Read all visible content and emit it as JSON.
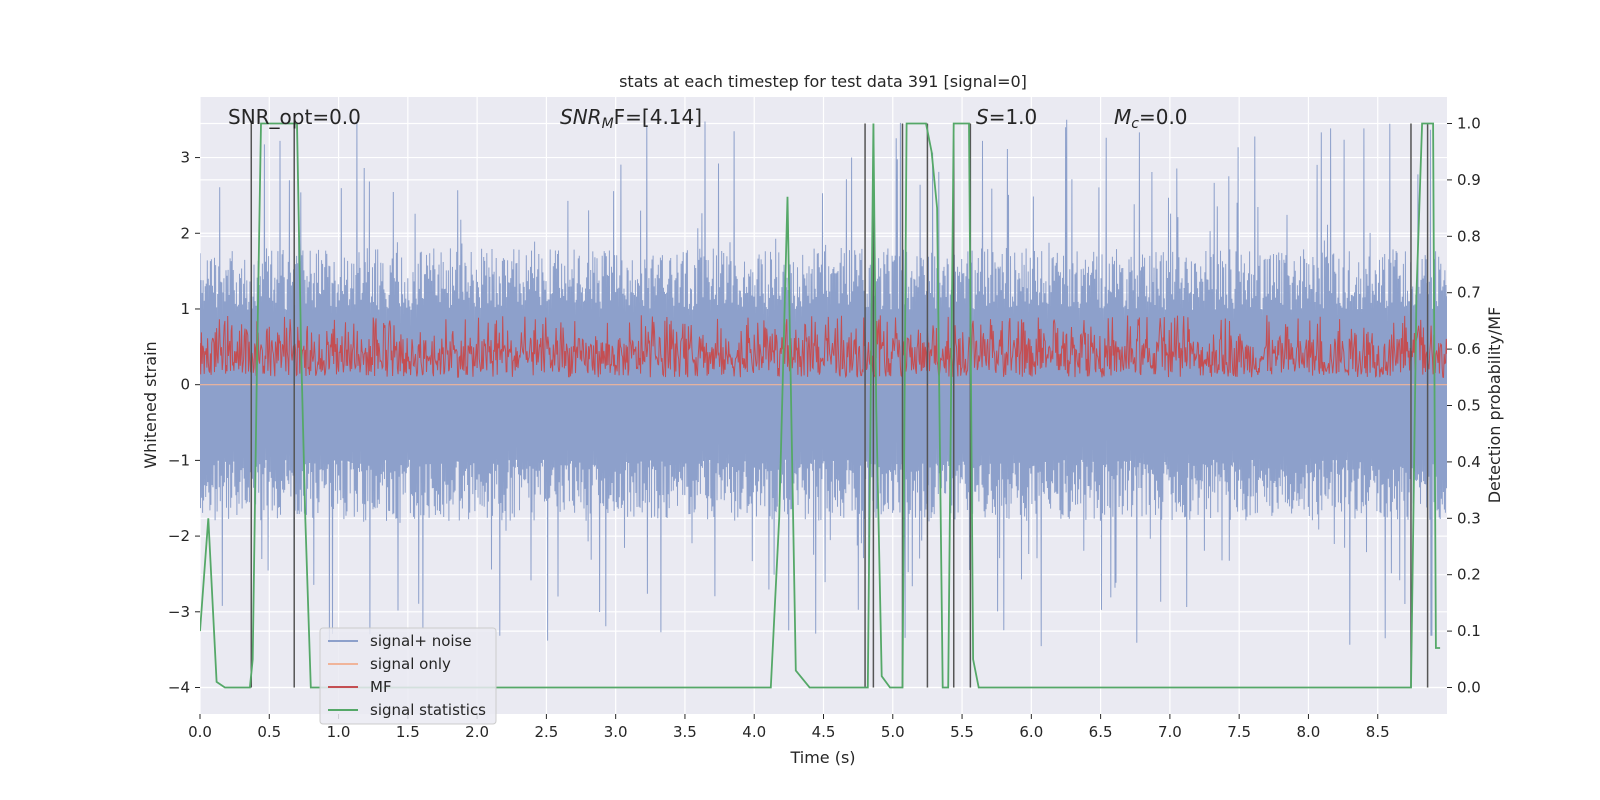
{
  "chart_data": {
    "type": "line",
    "title": "stats at each timestep for test data 391 [signal=0]",
    "xlabel": "Time (s)",
    "ylabel": "Whitened strain",
    "y2label": "Detection probability/MF",
    "xlim": [
      0.0,
      9.0
    ],
    "ylim": [
      -4.35,
      3.8
    ],
    "y2lim": [
      -0.047,
      1.047
    ],
    "xticks": [
      "0.0",
      "0.5",
      "1.0",
      "1.5",
      "2.0",
      "2.5",
      "3.0",
      "3.5",
      "4.0",
      "4.5",
      "5.0",
      "5.5",
      "6.0",
      "6.5",
      "7.0",
      "7.5",
      "8.0",
      "8.5"
    ],
    "xtick_values": [
      0.0,
      0.5,
      1.0,
      1.5,
      2.0,
      2.5,
      3.0,
      3.5,
      4.0,
      4.5,
      5.0,
      5.5,
      6.0,
      6.5,
      7.0,
      7.5,
      8.0,
      8.5
    ],
    "yticks": [
      "3",
      "2",
      "1",
      "0",
      "−1",
      "−2",
      "−3",
      "−4"
    ],
    "ytick_values": [
      3,
      2,
      1,
      0,
      -1,
      -2,
      -3,
      -4
    ],
    "y2ticks": [
      "1.0",
      "0.9",
      "0.8",
      "0.7",
      "0.6",
      "0.5",
      "0.4",
      "0.3",
      "0.2",
      "0.1",
      "0.0"
    ],
    "y2tick_values": [
      1.0,
      0.9,
      0.8,
      0.7,
      0.6,
      0.5,
      0.4,
      0.3,
      0.2,
      0.1,
      0.0
    ],
    "grid": true,
    "legend_position": "lower-left",
    "annotations": {
      "snr_opt": "SNR_opt=0.0",
      "snr_mf_base": "SNR",
      "snr_mf_sub": "M",
      "snr_mf_rest": "F=[4.14]",
      "s_base": "S",
      "s_rest": "=1.0",
      "mc_base": "M",
      "mc_sub": "c",
      "mc_rest": "=0.0"
    },
    "series": [
      {
        "name": "signal+ noise",
        "color": "#8da0cb",
        "axis": "left",
        "description_level": "noise band approx ±1.8 with spikes to ±3.5",
        "envelope": {
          "core": 1.8,
          "peak": 3.5
        }
      },
      {
        "name": "signal only",
        "color": "#f0b49a",
        "axis": "left",
        "values_constant": 0.0
      },
      {
        "name": "MF",
        "color": "#c44e52",
        "axis": "right",
        "band": [
          0.55,
          0.62,
          0.66
        ]
      },
      {
        "name": "signal statistics",
        "color": "#55a868",
        "axis": "right",
        "x": [
          0.0,
          0.06,
          0.12,
          0.18,
          0.24,
          0.3,
          0.36,
          0.38,
          0.41,
          0.44,
          0.47,
          0.5,
          0.53,
          0.56,
          0.59,
          0.62,
          0.65,
          0.68,
          0.7,
          0.73,
          0.76,
          0.8,
          0.83,
          0.86,
          1.0,
          2.0,
          3.0,
          4.0,
          4.12,
          4.18,
          4.24,
          4.3,
          4.4,
          4.6,
          4.8,
          4.82,
          4.86,
          4.88,
          4.92,
          4.98,
          5.04,
          5.07,
          5.1,
          5.13,
          5.16,
          5.2,
          5.24,
          5.28,
          5.32,
          5.36,
          5.4,
          5.44,
          5.48,
          5.51,
          5.55,
          5.58,
          5.62,
          5.66,
          5.7,
          6.0,
          7.0,
          8.0,
          8.7,
          8.72,
          8.74,
          8.78,
          8.82,
          8.86,
          8.9,
          8.92,
          8.95
        ],
        "y": [
          0.1,
          0.3,
          0.01,
          0.0,
          0.0,
          0.0,
          0.0,
          0.05,
          0.55,
          1.0,
          1.0,
          1.0,
          1.0,
          1.0,
          1.0,
          1.0,
          1.0,
          1.0,
          1.0,
          0.6,
          0.3,
          0.0,
          0.0,
          0.0,
          0.0,
          0.0,
          0.0,
          0.0,
          0.0,
          0.3,
          0.87,
          0.03,
          0.0,
          0.0,
          0.0,
          0.0,
          1.0,
          0.5,
          0.02,
          0.0,
          0.0,
          0.0,
          1.0,
          1.0,
          1.0,
          1.0,
          1.0,
          0.95,
          0.85,
          0.0,
          0.0,
          1.0,
          1.0,
          1.0,
          1.0,
          0.05,
          0.0,
          0.0,
          0.0,
          0.0,
          0.0,
          0.0,
          0.0,
          0.0,
          0.0,
          0.7,
          1.0,
          1.0,
          1.0,
          0.07,
          0.07
        ]
      }
    ],
    "markers": {
      "color": "#555555",
      "x": [
        0.37,
        0.68,
        4.8,
        4.86,
        5.07,
        5.25,
        5.44,
        5.56,
        8.74,
        8.86
      ]
    }
  }
}
